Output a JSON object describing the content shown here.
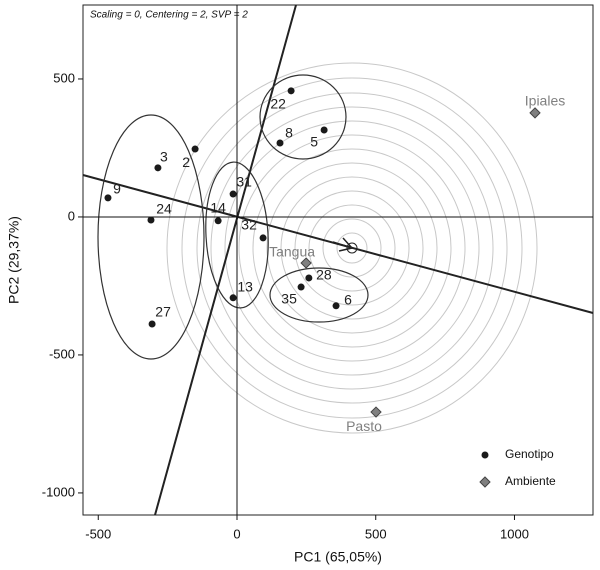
{
  "chart_data": {
    "type": "scatter",
    "annotation": "Scaling = 0, Centering = 2, SVP = 2",
    "x_label": "PC1 (65,05%)",
    "y_label": "PC2 (29,37%)",
    "xlim": [
      -555,
      1283
    ],
    "ylim": [
      -1080,
      768
    ],
    "xticks": [
      -500,
      0,
      500,
      1000
    ],
    "yticks": [
      -1000,
      -500,
      0,
      500
    ],
    "legend": "lower right",
    "series": [
      {
        "name": "Genotipo",
        "color": "#1a1a1a",
        "marker": "circle",
        "labels": [
          "22",
          "8",
          "5",
          "3",
          "2",
          "9",
          "24",
          "27",
          "14",
          "31",
          "32",
          "13",
          "28",
          "35",
          "6"
        ],
        "x": [
          195,
          155,
          314,
          -285,
          -151,
          -465,
          -310,
          -306,
          -68,
          -14,
          94,
          -14,
          259,
          231,
          357
        ],
        "values": [
          457,
          268,
          315,
          178,
          246,
          69,
          -11,
          -388,
          -14,
          83,
          -76,
          -293,
          -221,
          -254,
          -322
        ]
      },
      {
        "name": "Ambiente",
        "color": "#808080",
        "marker": "diamond",
        "labels": [
          "Ipiales",
          "Tangua",
          "Pasto"
        ],
        "x": [
          1074,
          249,
          501
        ],
        "values": [
          377,
          -167,
          -707
        ]
      }
    ]
  }
}
